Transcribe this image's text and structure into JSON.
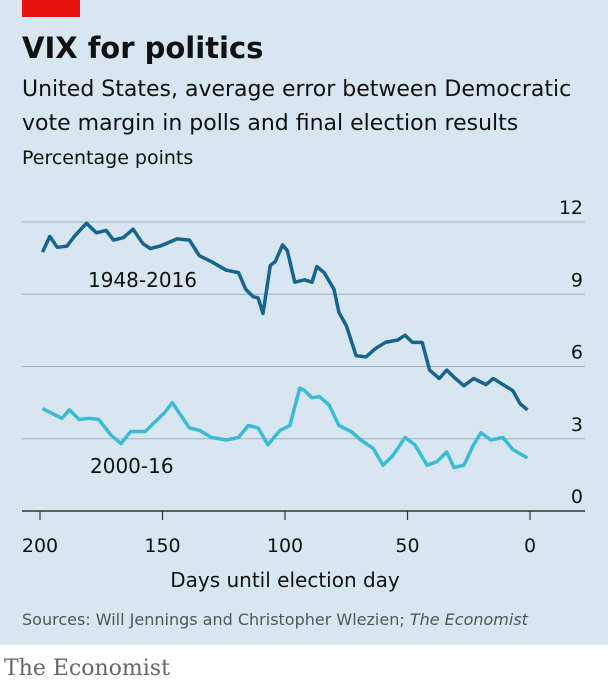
{
  "chart_data": {
    "type": "line",
    "title": "VIX for politics",
    "subtitle": [
      "United States, average error between Democratic",
      "vote margin in polls and final election results"
    ],
    "y_label": "Percentage points",
    "x_label": "Days until election day",
    "source": [
      "Sources: Will Jennings and Christopher Wlezien; ",
      "The Economist"
    ],
    "brand": "The Economist",
    "xlim": [
      200,
      0
    ],
    "xticks": [
      200,
      150,
      100,
      50,
      0
    ],
    "ylim": [
      0,
      12
    ],
    "yticks": [
      0,
      3,
      6,
      9,
      12
    ],
    "grid": true,
    "series": [
      {
        "name": "1948-2016",
        "color": "#17648f",
        "x": [
          199,
          196,
          193,
          189,
          186,
          181,
          177,
          173,
          170,
          166,
          162,
          158,
          155,
          151,
          144,
          139,
          135,
          130,
          124,
          119,
          116,
          113,
          111,
          109,
          106,
          104,
          101,
          99,
          96,
          92,
          89,
          87,
          84,
          80,
          78,
          75,
          71,
          67,
          63,
          59,
          54,
          51,
          48,
          44,
          41,
          37,
          34,
          31,
          27,
          23,
          18,
          15,
          11,
          7,
          4,
          1
        ],
        "values": [
          10.75,
          11.4,
          10.95,
          11.0,
          11.4,
          11.95,
          11.55,
          11.65,
          11.25,
          11.35,
          11.7,
          11.1,
          10.9,
          11.0,
          11.3,
          11.25,
          10.6,
          10.35,
          10.0,
          9.9,
          9.2,
          8.9,
          8.85,
          8.2,
          10.2,
          10.35,
          11.05,
          10.8,
          9.5,
          9.6,
          9.5,
          10.15,
          9.9,
          9.2,
          8.25,
          7.7,
          6.45,
          6.4,
          6.75,
          7.0,
          7.1,
          7.3,
          7.0,
          7.0,
          5.85,
          5.5,
          5.85,
          5.55,
          5.2,
          5.5,
          5.25,
          5.5,
          5.25,
          5.0,
          4.45,
          4.2
        ]
      },
      {
        "name": "2000-16",
        "color": "#3bbcd4",
        "x": [
          199,
          195,
          191,
          188,
          184,
          180,
          176,
          171,
          167,
          163,
          157,
          153,
          149,
          146,
          143,
          139,
          135,
          130,
          124,
          119,
          115,
          111,
          107,
          102,
          98,
          94,
          92,
          89,
          86,
          82,
          78,
          73,
          69,
          64,
          60,
          56,
          51,
          47,
          42,
          38,
          34,
          31,
          27,
          23,
          20,
          16,
          11,
          7,
          1
        ],
        "values": [
          4.25,
          4.05,
          3.85,
          4.2,
          3.8,
          3.85,
          3.8,
          3.15,
          2.8,
          3.3,
          3.3,
          3.7,
          4.1,
          4.5,
          4.05,
          3.45,
          3.35,
          3.05,
          2.95,
          3.05,
          3.55,
          3.45,
          2.75,
          3.35,
          3.55,
          5.1,
          5.0,
          4.7,
          4.75,
          4.4,
          3.55,
          3.3,
          2.95,
          2.6,
          1.9,
          2.3,
          3.05,
          2.75,
          1.9,
          2.05,
          2.45,
          1.8,
          1.9,
          2.75,
          3.25,
          2.95,
          3.05,
          2.55,
          2.2
        ]
      }
    ]
  }
}
